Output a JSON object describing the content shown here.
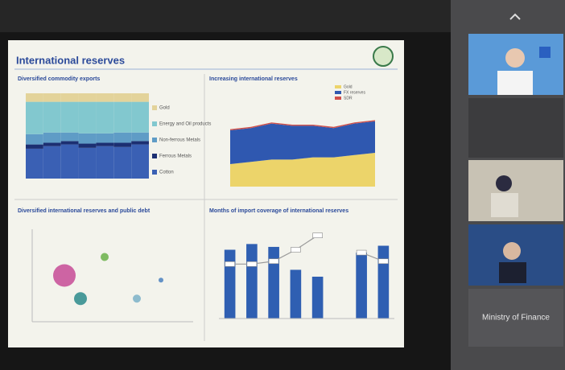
{
  "slide": {
    "title": "International reserves",
    "panels": [
      {
        "title": "Diversified commodity exports",
        "type": "stacked_bar",
        "categories": [
          null,
          null,
          null,
          null,
          null,
          null,
          null
        ],
        "ylim": [
          0,
          100
        ],
        "series": [
          {
            "name": "Cotton",
            "color": "#3a60b4",
            "values": [
              35,
              38,
              40,
              36,
              38,
              37,
              40
            ]
          },
          {
            "name": "Ferrous Metals",
            "color": "#1c2f72",
            "values": [
              5,
              4,
              4,
              5,
              4,
              5,
              4
            ]
          },
          {
            "name": "Non-ferrous Metals",
            "color": "#5f9cc6",
            "values": [
              12,
              12,
              10,
              12,
              11,
              12,
              10
            ]
          },
          {
            "name": "Energy and Oil products",
            "color": "#82c8cf",
            "values": [
              38,
              36,
              36,
              37,
              37,
              36,
              36
            ]
          },
          {
            "name": "Gold",
            "color": "#e3d39a",
            "values": [
              10,
              10,
              10,
              10,
              10,
              10,
              10
            ]
          }
        ]
      },
      {
        "title": "Increasing international reserves",
        "type": "stacked_area",
        "ylim": [
          0,
          40
        ],
        "series": [
          {
            "name": "Gold",
            "color": "#ecd46a",
            "values": [
              10,
              11,
              12,
              12,
              13,
              13,
              14,
              15
            ]
          },
          {
            "name": "FX reserves",
            "color": "#2f58b0",
            "values": [
              15,
              15,
              16,
              15,
              14,
              13,
              14,
              14
            ]
          },
          {
            "name": "SDR",
            "color": "#d0504a",
            "values": [
              0.5,
              0.5,
              0.5,
              0.5,
              0.5,
              0.5,
              0.5,
              0.5
            ]
          }
        ]
      },
      {
        "title": "Diversified international reserves and public debt",
        "type": "bubble",
        "xlim": [
          0,
          100
        ],
        "ylim": [
          0,
          100
        ],
        "series": [
          {
            "name": null,
            "color": "#c64a96",
            "x": [
              20,
              30,
              45,
              65,
              80
            ],
            "y": [
              50,
              25,
              70,
              25,
              45
            ],
            "size": [
              14,
              8,
              5,
              5,
              3
            ]
          }
        ]
      },
      {
        "title": "Months of import coverage of international reserves",
        "type": "bar_line",
        "ylim": [
          0,
          16
        ],
        "values": [
          12,
          13,
          12.5,
          8.5,
          7.3,
          null,
          11.5,
          12.7
        ],
        "color": "#2f5fb2",
        "line": [
          9.5,
          9.5,
          10,
          12,
          14.5,
          null,
          11.5,
          10
        ]
      }
    ]
  },
  "sidebar": {
    "caption": "Ministry of Finance"
  }
}
